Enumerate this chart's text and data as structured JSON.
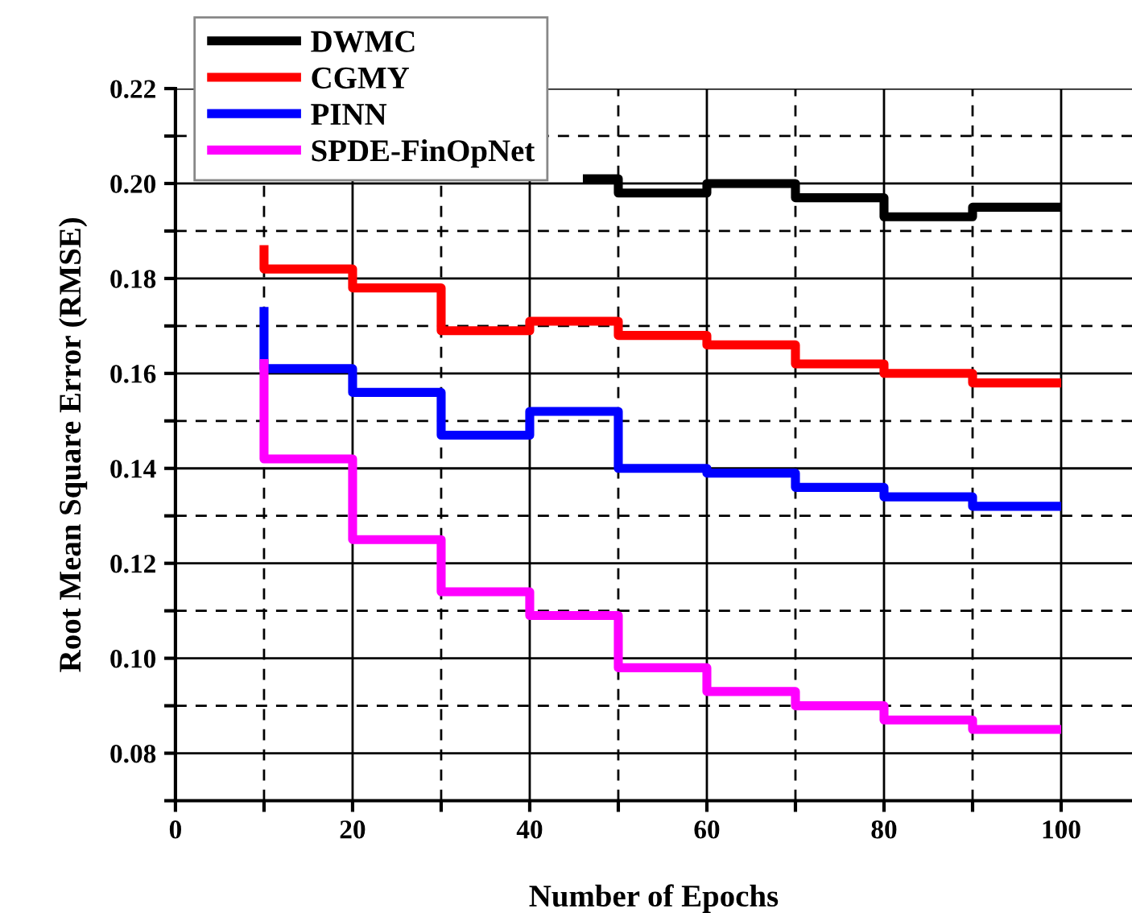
{
  "chart_data": {
    "type": "step",
    "xlabel": "Number of Epochs",
    "ylabel": "Root Mean Square Error (RMSE)",
    "x": [
      10,
      20,
      30,
      40,
      50,
      60,
      70,
      80,
      90,
      100
    ],
    "series": [
      {
        "name": "DWMC",
        "color": "#000000",
        "x": [
          46,
          50,
          60,
          70,
          80,
          90,
          100
        ],
        "values": [
          0.201,
          0.201,
          0.198,
          0.2,
          0.197,
          0.193,
          0.195
        ]
      },
      {
        "name": "CGMY",
        "color": "#ff0000",
        "values": [
          0.187,
          0.182,
          0.178,
          0.169,
          0.171,
          0.168,
          0.166,
          0.162,
          0.16,
          0.158
        ]
      },
      {
        "name": "PINN",
        "color": "#0000ff",
        "values": [
          0.174,
          0.161,
          0.156,
          0.147,
          0.152,
          0.14,
          0.139,
          0.136,
          0.134,
          0.132
        ]
      },
      {
        "name": "SPDE-FinOpNet",
        "color": "#ff00ff",
        "values": [
          0.163,
          0.142,
          0.125,
          0.114,
          0.109,
          0.098,
          0.093,
          0.09,
          0.087,
          0.085
        ]
      }
    ],
    "xlim": [
      0,
      108
    ],
    "ylim": [
      0.07,
      0.22
    ],
    "xticks": [
      0,
      {
        "value": 10,
        "label": null
      },
      20,
      {
        "value": 30,
        "label": null
      },
      40,
      {
        "value": 50,
        "label": null
      },
      60,
      {
        "value": 70,
        "label": null
      },
      80,
      {
        "value": 90,
        "label": null
      },
      100
    ],
    "yticks": [
      {
        "value": 0.07,
        "label": null
      },
      {
        "value": 0.08,
        "label": "0.08"
      },
      {
        "value": 0.09,
        "label": null
      },
      {
        "value": 0.1,
        "label": "0.10"
      },
      {
        "value": 0.11,
        "label": null
      },
      {
        "value": 0.12,
        "label": "0.12"
      },
      {
        "value": 0.13,
        "label": null
      },
      {
        "value": 0.14,
        "label": "0.14"
      },
      {
        "value": 0.15,
        "label": null
      },
      {
        "value": 0.16,
        "label": "0.16"
      },
      {
        "value": 0.17,
        "label": null
      },
      {
        "value": 0.18,
        "label": "0.18"
      },
      {
        "value": 0.19,
        "label": null
      },
      {
        "value": 0.2,
        "label": "0.20"
      },
      {
        "value": 0.21,
        "label": null
      },
      {
        "value": 0.22,
        "label": "0.22"
      }
    ],
    "grid": true,
    "legend": "top left",
    "line_style": "solid"
  }
}
